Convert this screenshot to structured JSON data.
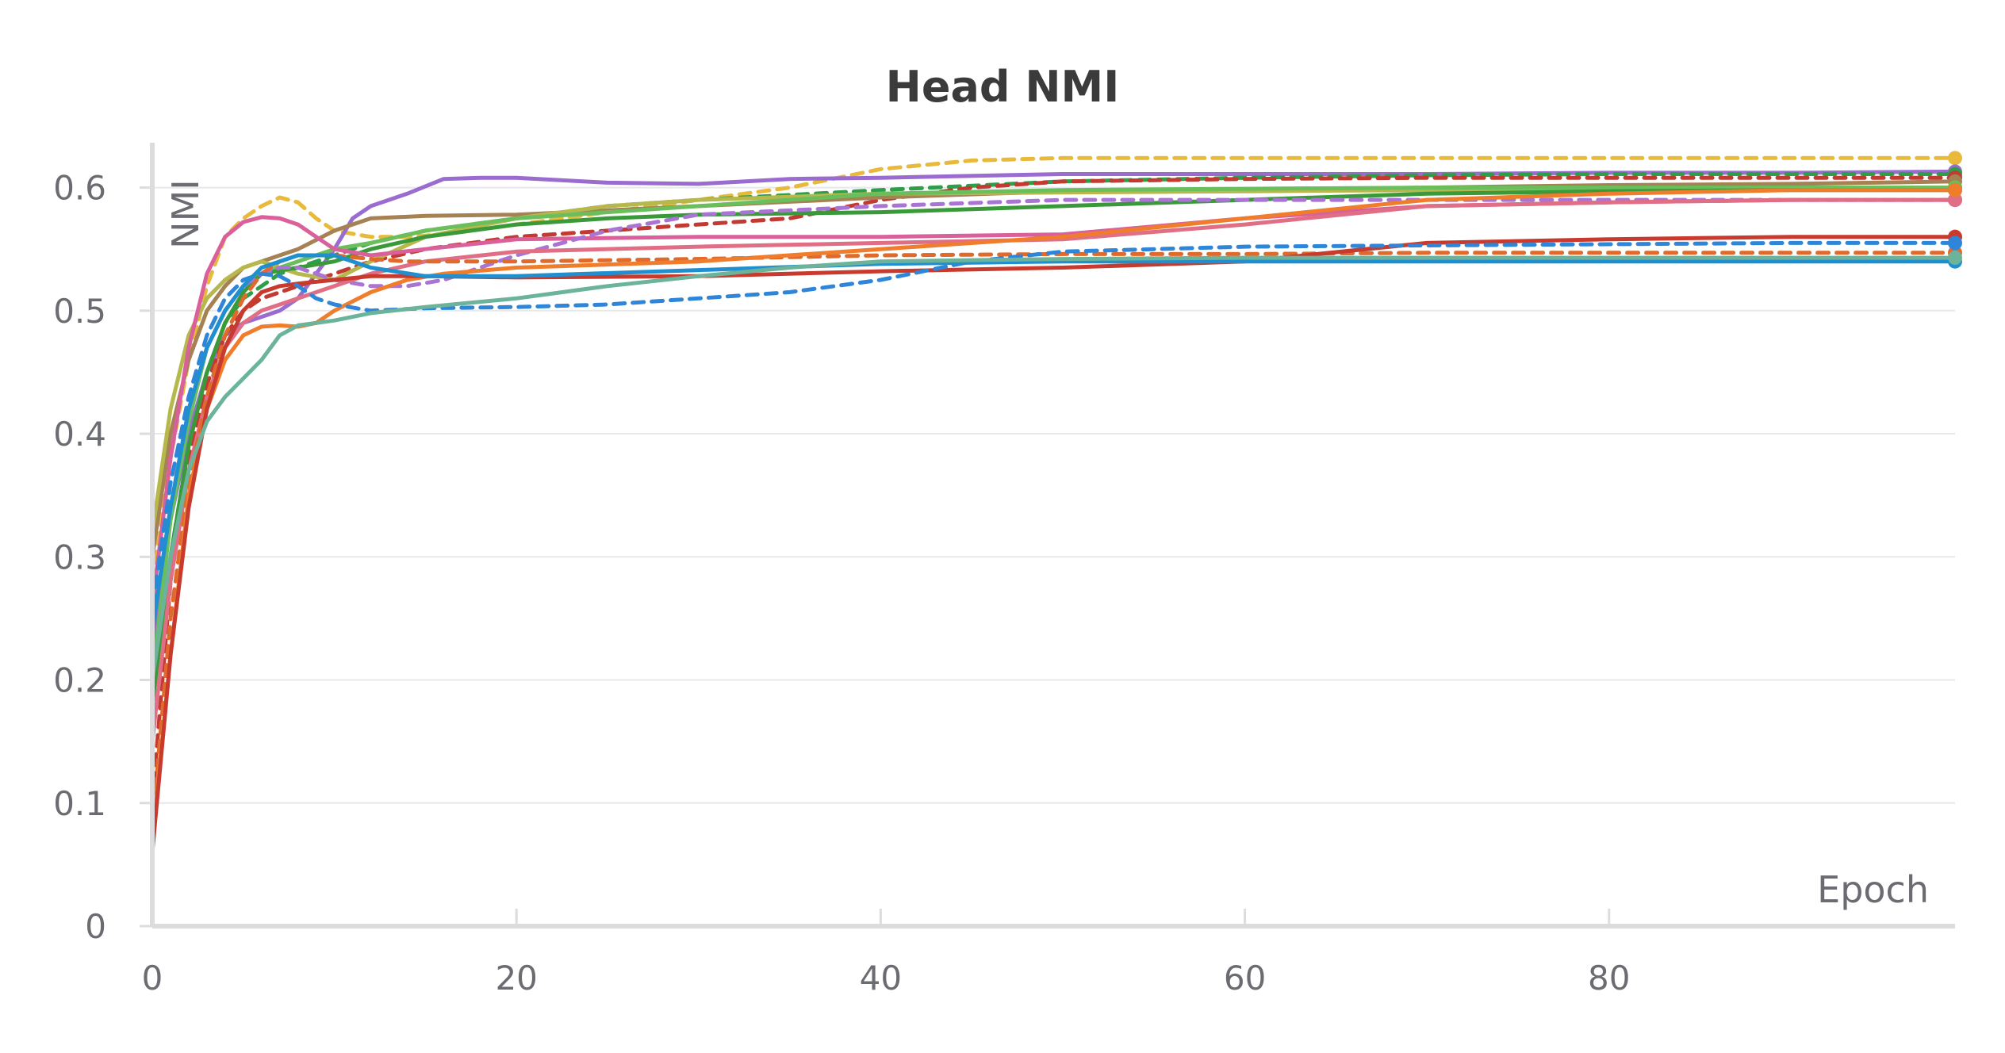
{
  "chart_data": {
    "type": "line",
    "title": "Head NMI",
    "xlabel": "Epoch",
    "ylabel": "NMI",
    "xlim": [
      0,
      99
    ],
    "ylim": [
      0,
      0.63
    ],
    "x_ticks": [
      0,
      20,
      40,
      60,
      80
    ],
    "y_ticks": [
      0,
      0.1,
      0.2,
      0.3,
      0.4,
      0.5,
      0.6
    ],
    "y_tick_labels": [
      "0",
      "0.1",
      "0.2",
      "0.3",
      "0.4",
      "0.5",
      "0.6"
    ],
    "grid": true,
    "legend": "none",
    "series": [
      {
        "color": "#e8b93b",
        "dashed": true,
        "x": [
          0,
          1,
          2,
          3,
          4,
          5,
          6,
          7,
          8,
          9,
          10,
          12,
          14,
          16,
          20,
          25,
          30,
          35,
          40,
          45,
          50,
          60,
          70,
          80,
          90,
          99
        ],
        "values": [
          0.28,
          0.38,
          0.46,
          0.52,
          0.56,
          0.575,
          0.585,
          0.592,
          0.588,
          0.575,
          0.565,
          0.56,
          0.56,
          0.562,
          0.57,
          0.58,
          0.59,
          0.6,
          0.615,
          0.622,
          0.624,
          0.624,
          0.624,
          0.624,
          0.624,
          0.624
        ]
      },
      {
        "color": "#9a6ccf",
        "dashed": false,
        "x": [
          0,
          1,
          2,
          3,
          4,
          5,
          6,
          7,
          8,
          9,
          10,
          11,
          12,
          14,
          16,
          18,
          20,
          25,
          30,
          35,
          40,
          50,
          60,
          70,
          80,
          90,
          99
        ],
        "values": [
          0.22,
          0.33,
          0.4,
          0.45,
          0.48,
          0.49,
          0.495,
          0.5,
          0.51,
          0.53,
          0.55,
          0.575,
          0.585,
          0.595,
          0.607,
          0.608,
          0.608,
          0.604,
          0.603,
          0.607,
          0.608,
          0.611,
          0.611,
          0.611,
          0.612,
          0.612,
          0.613
        ]
      },
      {
        "color": "#2e9e49",
        "dashed": true,
        "x": [
          0,
          1,
          2,
          3,
          4,
          5,
          6,
          7,
          8,
          10,
          12,
          15,
          20,
          25,
          30,
          40,
          50,
          60,
          70,
          80,
          90,
          99
        ],
        "values": [
          0.18,
          0.3,
          0.39,
          0.45,
          0.49,
          0.51,
          0.52,
          0.53,
          0.535,
          0.545,
          0.555,
          0.565,
          0.575,
          0.585,
          0.59,
          0.598,
          0.605,
          0.608,
          0.61,
          0.611,
          0.611,
          0.611
        ]
      },
      {
        "color": "#c23b32",
        "dashed": true,
        "x": [
          0,
          1,
          2,
          3,
          4,
          5,
          6,
          8,
          10,
          12,
          15,
          20,
          25,
          30,
          35,
          40,
          45,
          50,
          60,
          70,
          80,
          90,
          99
        ],
        "values": [
          0.1,
          0.28,
          0.38,
          0.44,
          0.48,
          0.5,
          0.51,
          0.52,
          0.53,
          0.54,
          0.55,
          0.56,
          0.565,
          0.57,
          0.575,
          0.59,
          0.6,
          0.605,
          0.607,
          0.608,
          0.608,
          0.608,
          0.608
        ]
      },
      {
        "color": "#a58153",
        "dashed": false,
        "x": [
          0,
          1,
          2,
          3,
          4,
          5,
          6,
          8,
          10,
          12,
          15,
          20,
          30,
          40,
          50,
          60,
          70,
          80,
          90,
          99
        ],
        "values": [
          0.3,
          0.4,
          0.46,
          0.5,
          0.52,
          0.535,
          0.54,
          0.55,
          0.565,
          0.575,
          0.577,
          0.578,
          0.585,
          0.592,
          0.597,
          0.598,
          0.6,
          0.602,
          0.603,
          0.605
        ]
      },
      {
        "color": "#b7b84b",
        "dashed": false,
        "x": [
          0,
          1,
          2,
          3,
          4,
          5,
          6,
          7,
          8,
          10,
          12,
          15,
          20,
          25,
          30,
          40,
          50,
          60,
          70,
          80,
          90,
          99
        ],
        "values": [
          0.32,
          0.42,
          0.48,
          0.51,
          0.525,
          0.535,
          0.54,
          0.535,
          0.53,
          0.525,
          0.54,
          0.56,
          0.575,
          0.585,
          0.59,
          0.595,
          0.596,
          0.597,
          0.598,
          0.599,
          0.6,
          0.6
        ]
      },
      {
        "color": "#6abf5c",
        "dashed": false,
        "x": [
          0,
          1,
          2,
          3,
          4,
          5,
          6,
          8,
          10,
          12,
          15,
          20,
          30,
          40,
          50,
          60,
          70,
          80,
          90,
          99
        ],
        "values": [
          0.2,
          0.33,
          0.41,
          0.47,
          0.5,
          0.52,
          0.53,
          0.54,
          0.55,
          0.555,
          0.565,
          0.575,
          0.585,
          0.595,
          0.598,
          0.599,
          0.6,
          0.6,
          0.6,
          0.6
        ]
      },
      {
        "color": "#3a9a3a",
        "dashed": false,
        "x": [
          0,
          1,
          2,
          3,
          4,
          5,
          6,
          8,
          10,
          12,
          15,
          20,
          25,
          30,
          40,
          50,
          60,
          70,
          80,
          90,
          99
        ],
        "values": [
          0.18,
          0.3,
          0.39,
          0.45,
          0.49,
          0.515,
          0.53,
          0.535,
          0.54,
          0.55,
          0.56,
          0.57,
          0.575,
          0.578,
          0.58,
          0.585,
          0.59,
          0.595,
          0.597,
          0.598,
          0.598
        ]
      },
      {
        "color": "#d9609a",
        "dashed": false,
        "x": [
          0,
          1,
          2,
          3,
          4,
          5,
          6,
          7,
          8,
          9,
          10,
          12,
          15,
          20,
          30,
          40,
          50,
          60,
          70,
          80,
          90,
          99
        ],
        "values": [
          0.26,
          0.38,
          0.47,
          0.53,
          0.56,
          0.572,
          0.576,
          0.575,
          0.57,
          0.56,
          0.55,
          0.545,
          0.55,
          0.558,
          0.56,
          0.56,
          0.562,
          0.575,
          0.585,
          0.588,
          0.59,
          0.59
        ]
      },
      {
        "color": "#a974d4",
        "dashed": true,
        "x": [
          0,
          1,
          2,
          3,
          4,
          5,
          6,
          7,
          8,
          10,
          12,
          14,
          16,
          18,
          20,
          25,
          30,
          40,
          50,
          60,
          70,
          80,
          90,
          99
        ],
        "values": [
          0.24,
          0.34,
          0.42,
          0.47,
          0.5,
          0.52,
          0.53,
          0.535,
          0.535,
          0.525,
          0.52,
          0.52,
          0.525,
          0.535,
          0.545,
          0.565,
          0.578,
          0.585,
          0.59,
          0.59,
          0.59,
          0.59,
          0.59,
          0.59
        ]
      },
      {
        "color": "#e06f85",
        "dashed": false,
        "x": [
          0,
          1,
          2,
          3,
          4,
          5,
          6,
          8,
          10,
          12,
          15,
          20,
          30,
          40,
          50,
          60,
          70,
          80,
          90,
          99
        ],
        "values": [
          0.15,
          0.28,
          0.37,
          0.43,
          0.47,
          0.49,
          0.5,
          0.51,
          0.52,
          0.53,
          0.54,
          0.548,
          0.552,
          0.555,
          0.558,
          0.57,
          0.585,
          0.588,
          0.59,
          0.59
        ]
      },
      {
        "color": "#e06a2b",
        "dashed": true,
        "x": [
          0,
          1,
          2,
          3,
          4,
          5,
          6,
          7,
          8,
          10,
          12,
          14,
          20,
          30,
          40,
          50,
          60,
          70,
          80,
          90,
          99
        ],
        "values": [
          0.08,
          0.25,
          0.36,
          0.43,
          0.48,
          0.51,
          0.53,
          0.54,
          0.545,
          0.545,
          0.542,
          0.54,
          0.54,
          0.542,
          0.545,
          0.546,
          0.546,
          0.547,
          0.547,
          0.547,
          0.547
        ]
      },
      {
        "color": "#ef7d2c",
        "dashed": false,
        "x": [
          0,
          1,
          2,
          3,
          4,
          5,
          6,
          7,
          8,
          9,
          10,
          12,
          14,
          16,
          20,
          30,
          40,
          50,
          60,
          70,
          80,
          90,
          99
        ],
        "values": [
          0.07,
          0.22,
          0.35,
          0.42,
          0.46,
          0.48,
          0.487,
          0.488,
          0.487,
          0.49,
          0.5,
          0.515,
          0.525,
          0.53,
          0.535,
          0.54,
          0.55,
          0.56,
          0.575,
          0.59,
          0.595,
          0.598,
          0.598
        ]
      },
      {
        "color": "#c73a2d",
        "dashed": false,
        "x": [
          0,
          1,
          2,
          3,
          4,
          5,
          6,
          7,
          8,
          10,
          12,
          15,
          20,
          30,
          40,
          50,
          60,
          70,
          80,
          90,
          99
        ],
        "values": [
          0.06,
          0.22,
          0.34,
          0.42,
          0.47,
          0.5,
          0.515,
          0.52,
          0.522,
          0.525,
          0.528,
          0.528,
          0.527,
          0.528,
          0.532,
          0.535,
          0.54,
          0.555,
          0.558,
          0.56,
          0.56
        ]
      },
      {
        "color": "#2f86d8",
        "dashed": true,
        "x": [
          0,
          1,
          2,
          3,
          4,
          5,
          6,
          7,
          8,
          9,
          10,
          12,
          15,
          20,
          25,
          30,
          35,
          40,
          45,
          50,
          60,
          70,
          80,
          90,
          99
        ],
        "values": [
          0.26,
          0.36,
          0.43,
          0.48,
          0.51,
          0.525,
          0.53,
          0.528,
          0.52,
          0.51,
          0.505,
          0.5,
          0.502,
          0.503,
          0.505,
          0.51,
          0.515,
          0.525,
          0.54,
          0.548,
          0.552,
          0.553,
          0.554,
          0.555,
          0.555
        ]
      },
      {
        "color": "#1f8fd0",
        "dashed": false,
        "x": [
          0,
          1,
          2,
          3,
          4,
          5,
          6,
          7,
          8,
          10,
          12,
          15,
          20,
          30,
          40,
          50,
          60,
          70,
          80,
          90,
          99
        ],
        "values": [
          0.24,
          0.34,
          0.42,
          0.47,
          0.5,
          0.52,
          0.535,
          0.54,
          0.545,
          0.545,
          0.535,
          0.528,
          0.528,
          0.533,
          0.538,
          0.54,
          0.54,
          0.54,
          0.54,
          0.54,
          0.54
        ]
      },
      {
        "color": "#6bb39a",
        "dashed": false,
        "x": [
          0,
          1,
          2,
          3,
          4,
          5,
          6,
          7,
          8,
          10,
          12,
          15,
          20,
          25,
          30,
          35,
          40,
          50,
          60,
          70,
          80,
          90,
          99
        ],
        "values": [
          0.2,
          0.3,
          0.37,
          0.41,
          0.43,
          0.445,
          0.46,
          0.48,
          0.488,
          0.492,
          0.498,
          0.503,
          0.51,
          0.52,
          0.528,
          0.535,
          0.54,
          0.542,
          0.543,
          0.543,
          0.543,
          0.543,
          0.543
        ]
      }
    ]
  }
}
